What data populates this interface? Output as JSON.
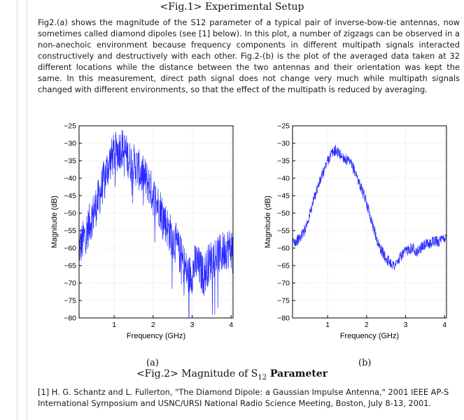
{
  "fig1_caption": "<Fig.1> Experimental Setup",
  "paragraph": "Fig2.(a) shows the magnitude of the S12 parameter of a typical pair of inverse-bow-tie antennas, now sometimes called diamond dipoles (see [1] below). In this plot, a number of zigzags can be observed in a non-anechoic environment because frequency components in different multipath signals interacted constructively and destructively with each other. Fig.2-(b) is the plot of the averaged data taken at 32 different locations while the distance between the two antennas and their orientation was kept the same. In this measurement, direct path signal does not change very much while multipath signals changed with different environments, so that the effect of the multipath is reduced by averaging.",
  "fig2_caption": {
    "prefix": "<Fig.2> Magnitude of S",
    "subscript": "12",
    "suffix": " Parameter"
  },
  "panel_labels": [
    "(a)",
    "(b)"
  ],
  "reference": "[1] H. G. Schantz and L. Fullerton, \"The Diamond Dipole: a Gaussian Impulse Antenna,\" 2001 IEEE AP-S International Symposium and USNC/URSI National Radio Science Meeting, Boston, July 8-13, 2001.",
  "chart_data": [
    {
      "type": "line",
      "panel": "(a)",
      "xlabel": "Frequency (GHz)",
      "ylabel": "Magnitude (dB)",
      "xlim": [
        0.1,
        4.05
      ],
      "ylim": [
        -80,
        -25
      ],
      "xticks": [
        1,
        2,
        3,
        4
      ],
      "yticks": [
        -25,
        -30,
        -35,
        -40,
        -45,
        -50,
        -55,
        -60,
        -65,
        -70,
        -75,
        -80
      ],
      "grid": true,
      "color": "#2a2aff",
      "x": [
        0.1,
        0.2,
        0.3,
        0.4,
        0.5,
        0.6,
        0.7,
        0.8,
        0.9,
        1.0,
        1.1,
        1.2,
        1.3,
        1.4,
        1.5,
        1.6,
        1.7,
        1.8,
        1.9,
        2.0,
        2.1,
        2.2,
        2.3,
        2.4,
        2.5,
        2.6,
        2.7,
        2.8,
        2.9,
        3.0,
        3.1,
        3.2,
        3.3,
        3.4,
        3.5,
        3.6,
        3.7,
        3.8,
        3.9,
        4.0
      ],
      "y": [
        -60,
        -58,
        -55,
        -52,
        -49,
        -46,
        -42,
        -38,
        -35,
        -33,
        -32,
        -31,
        -33,
        -35,
        -36,
        -37,
        -39,
        -40,
        -42,
        -45,
        -47,
        -49,
        -52,
        -55,
        -57,
        -59,
        -62,
        -65,
        -68,
        -67,
        -64,
        -66,
        -68,
        -65,
        -63,
        -62,
        -62,
        -61,
        -60,
        -60
      ],
      "noise_db": 6
    },
    {
      "type": "line",
      "panel": "(b)",
      "xlabel": "Frequency (GHz)",
      "ylabel": "Magnitude (dB)",
      "xlim": [
        0.1,
        4.05
      ],
      "ylim": [
        -80,
        -25
      ],
      "xticks": [
        1,
        2,
        3,
        4
      ],
      "yticks": [
        -25,
        -30,
        -35,
        -40,
        -45,
        -50,
        -55,
        -60,
        -65,
        -70,
        -75,
        -80
      ],
      "grid": true,
      "color": "#2a2aff",
      "x": [
        0.1,
        0.2,
        0.3,
        0.4,
        0.5,
        0.6,
        0.7,
        0.8,
        0.9,
        1.0,
        1.1,
        1.2,
        1.3,
        1.4,
        1.5,
        1.6,
        1.7,
        1.8,
        1.9,
        2.0,
        2.1,
        2.2,
        2.3,
        2.4,
        2.5,
        2.6,
        2.7,
        2.8,
        2.9,
        3.0,
        3.1,
        3.2,
        3.3,
        3.4,
        3.5,
        3.6,
        3.7,
        3.8,
        3.9,
        4.0
      ],
      "y": [
        -58,
        -58,
        -57,
        -55,
        -52,
        -48,
        -44,
        -41,
        -38,
        -35,
        -33,
        -32,
        -33,
        -34,
        -35,
        -36,
        -38,
        -41,
        -44,
        -47,
        -51,
        -55,
        -59,
        -61,
        -63,
        -64,
        -65,
        -64,
        -62,
        -61,
        -60,
        -60,
        -61,
        -60,
        -59,
        -59,
        -58,
        -58,
        -58,
        -57
      ],
      "noise_db": 1.6
    }
  ]
}
